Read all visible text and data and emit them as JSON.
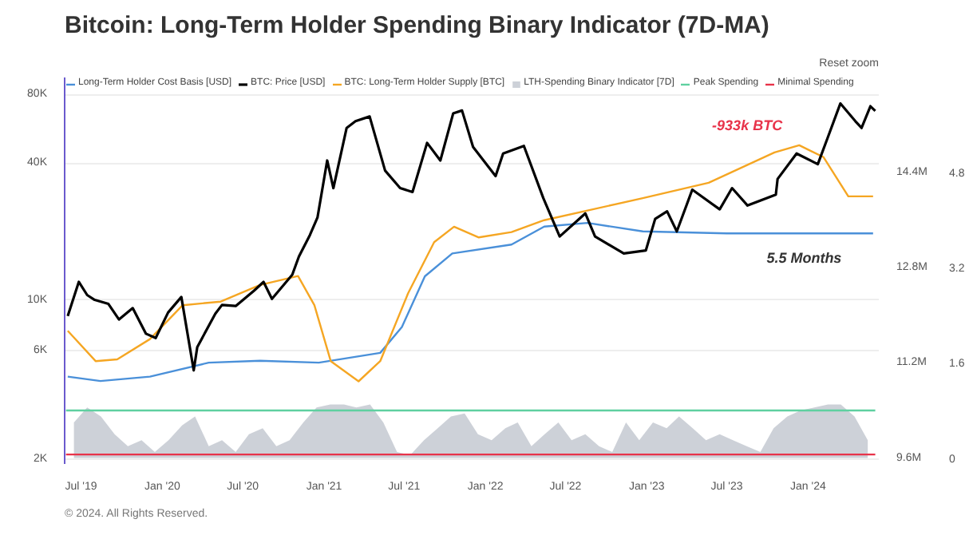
{
  "chart_data": {
    "type": "line",
    "title": "Bitcoin: Long-Term Holder Spending Binary Indicator (7D-MA)",
    "xlim": [
      "2019-05-25",
      "2024-06-09"
    ],
    "xticks": [
      {
        "value": "2019-07-01",
        "label": "Jul '19"
      },
      {
        "value": "2020-01-01",
        "label": "Jan '20"
      },
      {
        "value": "2020-07-01",
        "label": "Jul '20"
      },
      {
        "value": "2021-01-01",
        "label": "Jan '21"
      },
      {
        "value": "2021-07-01",
        "label": "Jul '21"
      },
      {
        "value": "2022-01-01",
        "label": "Jan '22"
      },
      {
        "value": "2022-07-01",
        "label": "Jul '22"
      },
      {
        "value": "2023-01-01",
        "label": "Jan '23"
      },
      {
        "value": "2023-07-01",
        "label": "Jul '23"
      },
      {
        "value": "2024-01-01",
        "label": "Jan '24"
      }
    ],
    "ylim": [
      1900,
      95000
    ],
    "yticks": [
      {
        "value": 2000,
        "label": "2K"
      },
      {
        "value": 6000,
        "label": "6K"
      },
      {
        "value": 10000,
        "label": "10K"
      },
      {
        "value": 40000,
        "label": "40K"
      },
      {
        "value": 80000,
        "label": "80K"
      }
    ],
    "y2lim": [
      9500000,
      16000000
    ],
    "y2ticks": [
      {
        "value": 9600000,
        "label": "9.6M"
      },
      {
        "value": 11200000,
        "label": "11.2M"
      },
      {
        "value": 12800000,
        "label": "12.8M"
      },
      {
        "value": 14400000,
        "label": "14.4M"
      }
    ],
    "y3lim": [
      -0.1,
      6.4
    ],
    "y3ticks": [
      0,
      1.6,
      3.2,
      4.8
    ],
    "log": "y",
    "grid": "y",
    "legend": "top",
    "series": [
      {
        "name": "LTH-Spending Binary Indicator [7D]",
        "type": "area",
        "axis": "y3",
        "color": "#c8ccd4",
        "x": [
          "2019-06-15",
          "2019-07-15",
          "2019-08-15",
          "2019-09-15",
          "2019-10-15",
          "2019-11-15",
          "2019-12-15",
          "2020-01-15",
          "2020-02-15",
          "2020-03-15",
          "2020-04-15",
          "2020-05-15",
          "2020-06-15",
          "2020-07-15",
          "2020-08-15",
          "2020-09-15",
          "2020-10-15",
          "2020-11-15",
          "2020-12-15",
          "2021-01-15",
          "2021-02-15",
          "2021-03-15",
          "2021-04-15",
          "2021-05-15",
          "2021-06-15",
          "2021-07-15",
          "2021-08-15",
          "2021-09-15",
          "2021-10-15",
          "2021-11-15",
          "2021-12-15",
          "2022-01-15",
          "2022-02-15",
          "2022-03-15",
          "2022-04-15",
          "2022-05-15",
          "2022-06-15",
          "2022-07-15",
          "2022-08-15",
          "2022-09-15",
          "2022-10-15",
          "2022-11-15",
          "2022-12-15",
          "2023-01-15",
          "2023-02-15",
          "2023-03-15",
          "2023-04-15",
          "2023-05-15",
          "2023-06-15",
          "2023-07-15",
          "2023-08-15",
          "2023-09-15",
          "2023-10-15",
          "2023-11-15",
          "2023-12-15",
          "2024-01-15",
          "2024-02-15",
          "2024-03-15",
          "2024-04-15",
          "2024-05-15"
        ],
        "values": [
          0.6,
          0.85,
          0.7,
          0.4,
          0.2,
          0.3,
          0.1,
          0.3,
          0.55,
          0.7,
          0.2,
          0.3,
          0.1,
          0.4,
          0.5,
          0.2,
          0.3,
          0.6,
          0.85,
          0.9,
          0.9,
          0.85,
          0.9,
          0.6,
          0.1,
          0.05,
          0.3,
          0.5,
          0.7,
          0.75,
          0.4,
          0.3,
          0.5,
          0.6,
          0.2,
          0.4,
          0.6,
          0.3,
          0.4,
          0.2,
          0.1,
          0.6,
          0.3,
          0.6,
          0.5,
          0.7,
          0.5,
          0.3,
          0.4,
          0.3,
          0.2,
          0.1,
          0.5,
          0.7,
          0.8,
          0.85,
          0.9,
          0.9,
          0.7,
          0.3
        ]
      },
      {
        "name": "Peak Spending",
        "axis": "y3",
        "color": "#5fd0a0",
        "x": [
          "2019-05-28",
          "2024-06-01"
        ],
        "values": [
          0.8,
          0.8
        ]
      },
      {
        "name": "Minimal Spending",
        "axis": "y3",
        "color": "#e8334a",
        "x": [
          "2019-05-28",
          "2024-06-01"
        ],
        "values": [
          0.06,
          0.06
        ]
      },
      {
        "name": "Long-Term Holder Cost Basis [USD]",
        "color": "#4a90d9",
        "x": [
          "2019-06-01",
          "2019-08-14",
          "2019-12-04",
          "2020-04-15",
          "2020-08-09",
          "2020-12-20",
          "2021-05-08",
          "2021-06-26",
          "2021-08-17",
          "2021-10-18",
          "2022-03-01",
          "2022-05-14",
          "2022-08-20",
          "2022-12-23",
          "2023-07-01",
          "2024-05-27"
        ],
        "values": [
          4600,
          4400,
          4600,
          5300,
          5400,
          5300,
          5850,
          7600,
          12700,
          16000,
          17500,
          21000,
          21800,
          20000,
          19600,
          19600
        ]
      },
      {
        "name": "BTC: Long-Term Holder Supply [BTC]",
        "axis": "y2",
        "color": "#f5a623",
        "x": [
          "2019-06-01",
          "2019-08-03",
          "2019-09-21",
          "2019-12-04",
          "2020-02-16",
          "2020-05-12",
          "2020-08-09",
          "2020-11-03",
          "2020-12-10",
          "2021-01-16",
          "2021-03-20",
          "2021-05-08",
          "2021-07-10",
          "2021-09-07",
          "2021-10-22",
          "2021-12-17",
          "2022-03-01",
          "2022-05-14",
          "2022-12-23",
          "2023-05-21",
          "2023-10-17",
          "2023-12-12",
          "2024-02-05",
          "2024-04-01",
          "2024-05-27"
        ],
        "values": [
          11740000,
          11230000,
          11260000,
          11600000,
          12170000,
          12230000,
          12510000,
          12660000,
          12170000,
          11230000,
          10890000,
          11230000,
          12370000,
          13230000,
          13490000,
          13310000,
          13400000,
          13600000,
          13970000,
          14230000,
          14740000,
          14860000,
          14660000,
          14000000,
          14000000
        ]
      },
      {
        "name": "BTC: Price [USD]",
        "color": "#000000",
        "x": [
          "2019-06-01",
          "2019-06-26",
          "2019-07-15",
          "2019-08-01",
          "2019-09-01",
          "2019-09-25",
          "2019-10-26",
          "2019-11-25",
          "2019-12-17",
          "2020-01-14",
          "2020-02-13",
          "2020-03-12",
          "2020-03-20",
          "2020-04-30",
          "2020-05-15",
          "2020-06-15",
          "2020-07-27",
          "2020-08-17",
          "2020-09-05",
          "2020-10-21",
          "2020-11-05",
          "2020-11-30",
          "2020-12-17",
          "2021-01-08",
          "2021-01-22",
          "2021-02-21",
          "2021-03-13",
          "2021-04-14",
          "2021-05-19",
          "2021-06-22",
          "2021-07-20",
          "2021-08-22",
          "2021-09-21",
          "2021-10-20",
          "2021-11-09",
          "2021-12-04",
          "2022-01-24",
          "2022-02-10",
          "2022-03-29",
          "2022-05-12",
          "2022-06-18",
          "2022-08-15",
          "2022-09-06",
          "2022-11-10",
          "2022-12-30",
          "2023-01-20",
          "2023-02-16",
          "2023-03-10",
          "2023-04-14",
          "2023-06-15",
          "2023-07-13",
          "2023-08-17",
          "2023-10-20",
          "2023-10-24",
          "2023-12-06",
          "2024-01-23",
          "2024-02-15",
          "2024-03-14",
          "2024-04-17",
          "2024-05-01",
          "2024-05-21",
          "2024-06-01"
        ],
        "values": [
          8500,
          12000,
          10500,
          10000,
          9600,
          8200,
          9200,
          7100,
          6800,
          8800,
          10300,
          4900,
          6200,
          8700,
          9500,
          9400,
          11000,
          12000,
          10100,
          12900,
          15500,
          19300,
          23000,
          41000,
          31000,
          57000,
          61000,
          64000,
          37000,
          31000,
          29800,
          49000,
          41000,
          66000,
          68000,
          47000,
          35000,
          44000,
          47500,
          28000,
          19000,
          24000,
          19000,
          16000,
          16500,
          22700,
          24500,
          20000,
          30500,
          25000,
          31000,
          26000,
          29000,
          34000,
          44000,
          39500,
          52000,
          73000,
          61000,
          57000,
          71000,
          67700
        ]
      }
    ],
    "annotations": [
      "-933k BTC",
      "5.5 Months",
      "Reset zoom",
      "© 2024. All Rights Reserved."
    ]
  }
}
